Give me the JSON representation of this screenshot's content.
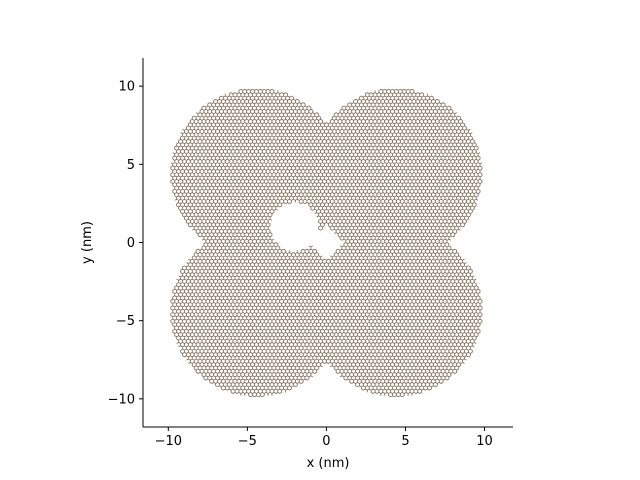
{
  "figure": {
    "background": "#ffffff"
  },
  "chart_data": {
    "type": "scatter",
    "subtype": "honeycomb-lattice",
    "title": "",
    "xlabel": "x (nm)",
    "ylabel": "y (nm)",
    "xlim": [
      -11.6,
      11.8
    ],
    "ylim": [
      -11.8,
      11.8
    ],
    "aspect": "equal",
    "grid": false,
    "legend": "none",
    "spines": {
      "top": false,
      "right": false,
      "left": true,
      "bottom": true
    },
    "x_ticks": [
      -10,
      -5,
      0,
      5,
      10
    ],
    "x_tick_labels": [
      "−10",
      "−5",
      "0",
      "5",
      "10"
    ],
    "y_ticks": [
      -10,
      -5,
      0,
      5,
      10
    ],
    "y_tick_labels": [
      "−10",
      "−5",
      "0",
      "5",
      "10"
    ],
    "lattice": {
      "type": "honeycomb",
      "bond_length_nm": 0.142,
      "bond_color": "#5f5f5f",
      "site_color": "#c48a4a"
    },
    "shape": {
      "union_of_circles": [
        {
          "center": [
            -4.4,
            4.4
          ],
          "radius": 5.5
        },
        {
          "center": [
            4.4,
            4.4
          ],
          "radius": 5.5
        },
        {
          "center": [
            -4.4,
            -4.4
          ],
          "radius": 5.5
        },
        {
          "center": [
            4.4,
            -4.4
          ],
          "radius": 5.5
        }
      ],
      "clip_x": [
        -10.0,
        10.0
      ],
      "clip_y": [
        -9.9,
        9.9
      ],
      "hole": {
        "center": [
          -2.0,
          1.0
        ],
        "radius": 1.5
      }
    }
  }
}
